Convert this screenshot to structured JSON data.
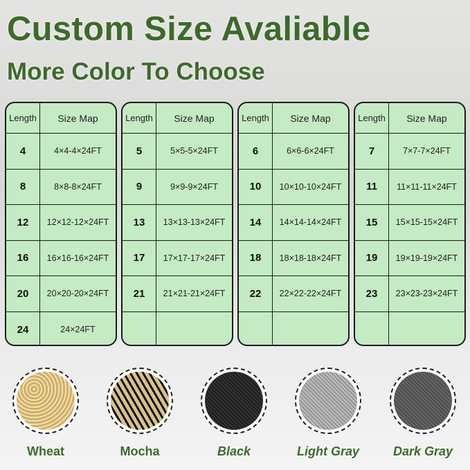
{
  "title": "Custom Size Avaliable",
  "subtitle": "More Color To Choose",
  "table_headers": [
    "Length",
    "Size Map"
  ],
  "tables": [
    [
      [
        "4",
        "4×4-4×24FT"
      ],
      [
        "8",
        "8×8-8×24FT"
      ],
      [
        "12",
        "12×12-12×24FT"
      ],
      [
        "16",
        "16×16-16×24FT"
      ],
      [
        "20",
        "20×20-20×24FT"
      ],
      [
        "24",
        "24×24FT"
      ]
    ],
    [
      [
        "5",
        "5×5-5×24FT"
      ],
      [
        "9",
        "9×9-9×24FT"
      ],
      [
        "13",
        "13×13-13×24FT"
      ],
      [
        "17",
        "17×17-17×24FT"
      ],
      [
        "21",
        "21×21-21×24FT"
      ],
      [
        "",
        ""
      ]
    ],
    [
      [
        "6",
        "6×6-6×24FT"
      ],
      [
        "10",
        "10×10-10×24FT"
      ],
      [
        "14",
        "14×14-14×24FT"
      ],
      [
        "18",
        "18×18-18×24FT"
      ],
      [
        "22",
        "22×22-22×24FT"
      ],
      [
        "",
        ""
      ]
    ],
    [
      [
        "7",
        "7×7-7×24FT"
      ],
      [
        "11",
        "11×11-11×24FT"
      ],
      [
        "15",
        "15×15-15×24FT"
      ],
      [
        "19",
        "19×19-19×24FT"
      ],
      [
        "23",
        "23×23-23×24FT"
      ],
      [
        "",
        ""
      ]
    ]
  ],
  "colors": [
    {
      "label": "Wheat",
      "swatch": "#e0c98e",
      "italic": false
    },
    {
      "label": "Mocha",
      "swatch": "#8a7450",
      "italic": false
    },
    {
      "label": "Black",
      "swatch": "#2a2a2a",
      "italic": true
    },
    {
      "label": "Light Gray",
      "swatch": "#a9a9a9",
      "italic": true
    },
    {
      "label": "Dark Gray",
      "swatch": "#5a5a5a",
      "italic": true
    }
  ],
  "accent": "#3e6a2c"
}
